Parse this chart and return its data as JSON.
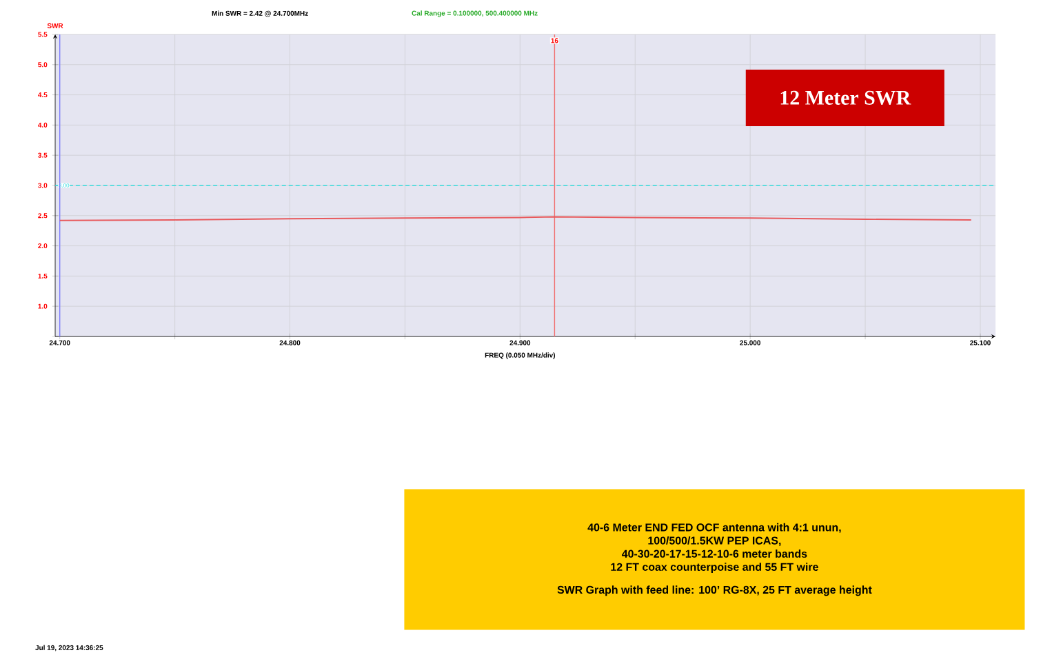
{
  "chart_data": {
    "type": "line",
    "title": "12 Meter SWR",
    "xlabel": "FREQ (0.050 MHz/div)",
    "ylabel": "SWR",
    "x": [
      24.7,
      24.75,
      24.8,
      24.85,
      24.9,
      24.915,
      24.95,
      25.0,
      25.05,
      25.096
    ],
    "series": [
      {
        "color": "#e8595c",
        "values": [
          2.42,
          2.43,
          2.45,
          2.46,
          2.47,
          2.48,
          2.47,
          2.46,
          2.44,
          2.43
        ]
      }
    ],
    "xlim": [
      24.698,
      25.1066
    ],
    "ylim": [
      0.5,
      5.5
    ],
    "xticks": [
      {
        "value": 24.7,
        "label": "24.700"
      },
      {
        "value": 24.75,
        "label": null
      },
      {
        "value": 24.8,
        "label": "24.800"
      },
      {
        "value": 24.85,
        "label": null
      },
      {
        "value": 24.9,
        "label": "24.900"
      },
      {
        "value": 24.95,
        "label": null
      },
      {
        "value": 25.0,
        "label": "25.000"
      },
      {
        "value": 25.05,
        "label": null
      },
      {
        "value": 25.1,
        "label": "25.100"
      }
    ],
    "yticks": [
      {
        "value": 0.5,
        "label": null
      },
      {
        "value": 1,
        "label": "1.0"
      },
      {
        "value": 1.5,
        "label": "1.5"
      },
      {
        "value": 2,
        "label": "2.0"
      },
      {
        "value": 2.5,
        "label": "2.5"
      },
      {
        "value": 3,
        "label": "3.0"
      },
      {
        "value": 3.5,
        "label": "3.5"
      },
      {
        "value": 4,
        "label": "4.0"
      },
      {
        "value": 4.5,
        "label": "4.5"
      },
      {
        "value": 5,
        "label": "5.0"
      },
      {
        "value": 5.5,
        "label": "5.5"
      }
    ],
    "grid": true,
    "marker": "none",
    "line_style": "solid",
    "ref_lines": [
      {
        "axis": "y",
        "value": 3.0,
        "label": "3.00",
        "color": "#33dddd",
        "line_style": "dashed"
      },
      {
        "axis": "x",
        "value": 24.7,
        "color": "#8080ff",
        "line_style": "solid"
      },
      {
        "axis": "x",
        "value": 24.915,
        "color": "#f07070",
        "line_style": "solid"
      }
    ],
    "annotations": [
      "Min SWR =  2.42 @  24.700MHz",
      "Cal Range = 0.100000,  500.400000 MHz",
      "Jul 19, 2023  14:36:25",
      "40-6 Meter END FED OCF antenna with 4:1 unun,",
      "100/500/1.5KW PEP ICAS,",
      "40-30-20-17-15-12-10-6 meter bands",
      "12 FT coax counterpoise and 55 FT wire",
      "SWR Graph with feed line: 100’ RG-8X, 25 FT average height",
      {
        "text": "16",
        "x": 24.915,
        "y": 5.5
      }
    ]
  }
}
